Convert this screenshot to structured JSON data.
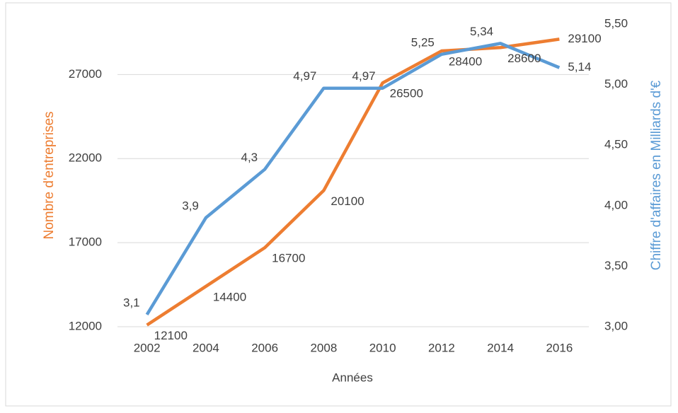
{
  "chart_data": {
    "type": "line",
    "x_label": "Années",
    "y_label": "Nombre d'entreprises",
    "y2_label": "Chiffre d'affaires en Milliards d'€",
    "categories": [
      "2002",
      "2004",
      "2006",
      "2008",
      "2010",
      "2012",
      "2014",
      "2016"
    ],
    "series": [
      {
        "name": "Nombre d'entreprises",
        "color": "#ed7d31",
        "values": [
          12100,
          14400,
          16700,
          20100,
          26500,
          28400,
          28600,
          29100
        ]
      },
      {
        "name": "Chiffre d'affaires",
        "color": "#5b9bd5",
        "axis": "y2",
        "values": [
          3.1,
          3.9,
          4.3,
          4.97,
          4.97,
          5.25,
          5.34,
          5.14
        ],
        "value_labels": [
          "3,1",
          "3,9",
          "4,3",
          "4,97",
          "4,97",
          "5,25",
          "5,34",
          "5,14"
        ]
      }
    ],
    "ylim": [
      12000,
      30000
    ],
    "yticks": [
      12000,
      17000,
      22000,
      27000
    ],
    "y2lim": [
      3,
      5.5
    ],
    "y2ticks": [
      {
        "value": 3,
        "label": "3,00"
      },
      {
        "value": 3.5,
        "label": "3,50"
      },
      {
        "value": 4,
        "label": "4,00"
      },
      {
        "value": 4.5,
        "label": "4,50"
      },
      {
        "value": 5,
        "label": "5,00"
      },
      {
        "value": 5.5,
        "label": "5,50"
      }
    ],
    "grid": true
  }
}
